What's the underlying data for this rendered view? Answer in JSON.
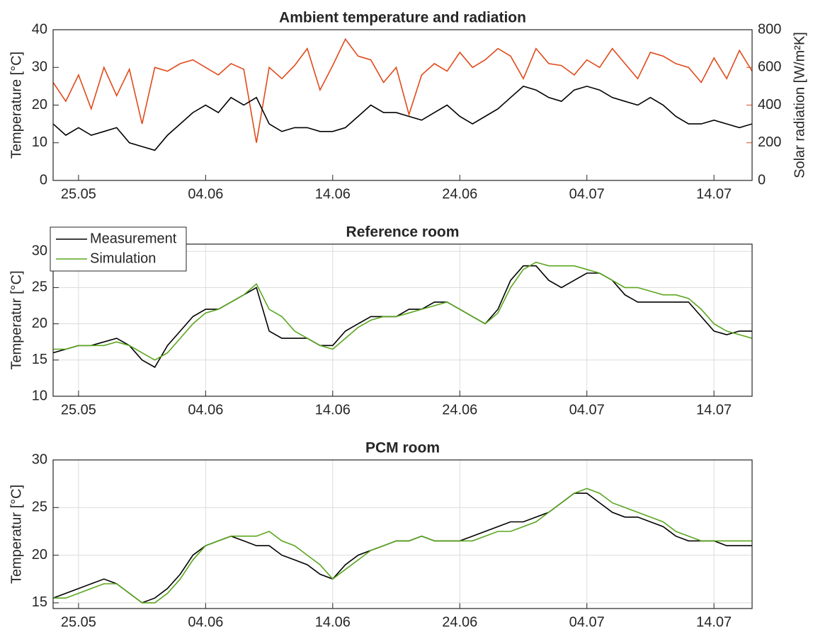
{
  "chart_data": [
    {
      "type": "line",
      "title": "Ambient temperature and radiation",
      "ylabel": "Temperature [°C]",
      "y2label": "Solar radiation [W/m²K]",
      "x": [
        "23.05",
        "24.05",
        "25.05",
        "26.05",
        "27.05",
        "28.05",
        "29.05",
        "30.05",
        "31.05",
        "01.06",
        "02.06",
        "03.06",
        "04.06",
        "05.06",
        "06.06",
        "07.06",
        "08.06",
        "09.06",
        "10.06",
        "11.06",
        "12.06",
        "13.06",
        "14.06",
        "15.06",
        "16.06",
        "17.06",
        "18.06",
        "19.06",
        "20.06",
        "21.06",
        "22.06",
        "23.06",
        "24.06",
        "25.06",
        "26.06",
        "27.06",
        "28.06",
        "29.06",
        "30.06",
        "01.07",
        "02.07",
        "03.07",
        "04.07",
        "05.07",
        "06.07",
        "07.07",
        "08.07",
        "09.07",
        "10.07",
        "11.07",
        "12.07",
        "13.07",
        "14.07",
        "15.07",
        "16.07",
        "17.07"
      ],
      "series": [
        {
          "color": "#000000",
          "values": [
            15,
            12,
            14,
            12,
            13,
            14,
            10,
            9,
            8,
            12,
            15,
            18,
            20,
            18,
            22,
            20,
            22,
            15,
            13,
            14,
            14,
            13,
            13,
            14,
            17,
            20,
            18,
            18,
            17,
            16,
            18,
            20,
            17,
            15,
            17,
            19,
            22,
            25,
            24,
            22,
            21,
            24,
            25,
            24,
            22,
            21,
            20,
            22,
            20,
            17,
            15,
            15,
            16,
            15,
            14,
            15
          ]
        },
        {
          "color": "#e04a1a",
          "axis": "y2",
          "values": [
            520,
            420,
            560,
            380,
            600,
            450,
            590,
            300,
            600,
            580,
            620,
            640,
            600,
            560,
            620,
            590,
            200,
            600,
            540,
            610,
            700,
            480,
            610,
            750,
            660,
            640,
            520,
            600,
            350,
            560,
            620,
            580,
            680,
            600,
            640,
            700,
            660,
            540,
            700,
            620,
            610,
            560,
            640,
            600,
            700,
            620,
            540,
            680,
            660,
            620,
            600,
            520,
            650,
            540,
            690,
            580
          ]
        }
      ],
      "xlim": [
        "23.05",
        "17.07"
      ],
      "xticks": [
        "25.05",
        "04.06",
        "14.06",
        "24.06",
        "04.07",
        "14.07"
      ],
      "ylim": [
        0,
        40
      ],
      "yticks": [
        0,
        10,
        20,
        30,
        40
      ],
      "y2lim": [
        0,
        800
      ],
      "y2ticks": [
        0,
        200,
        400,
        600,
        800
      ],
      "grid": false
    },
    {
      "type": "line",
      "title": "Reference room",
      "ylabel": "Temperatur [°C]",
      "legend": "upper left",
      "x": [
        "23.05",
        "24.05",
        "25.05",
        "26.05",
        "27.05",
        "28.05",
        "29.05",
        "30.05",
        "31.05",
        "01.06",
        "02.06",
        "03.06",
        "04.06",
        "05.06",
        "06.06",
        "07.06",
        "08.06",
        "09.06",
        "10.06",
        "11.06",
        "12.06",
        "13.06",
        "14.06",
        "15.06",
        "16.06",
        "17.06",
        "18.06",
        "19.06",
        "20.06",
        "21.06",
        "22.06",
        "23.06",
        "24.06",
        "25.06",
        "26.06",
        "27.06",
        "28.06",
        "29.06",
        "30.06",
        "01.07",
        "02.07",
        "03.07",
        "04.07",
        "05.07",
        "06.07",
        "07.07",
        "08.07",
        "09.07",
        "10.07",
        "11.07",
        "12.07",
        "13.07",
        "14.07",
        "15.07",
        "16.07",
        "17.07"
      ],
      "series": [
        {
          "name": "Measurement",
          "color": "#000000",
          "values": [
            16,
            16.5,
            17,
            17,
            17.5,
            18,
            17,
            15,
            14,
            17,
            19,
            21,
            22,
            22,
            23,
            24,
            25,
            19,
            18,
            18,
            18,
            17,
            17,
            19,
            20,
            21,
            21,
            21,
            22,
            22,
            23,
            23,
            22,
            21,
            20,
            22,
            26,
            28,
            28,
            26,
            25,
            26,
            27,
            27,
            26,
            24,
            23,
            23,
            23,
            23,
            23,
            21,
            19,
            18.5,
            19,
            19
          ]
        },
        {
          "name": "Simulation",
          "color": "#5aa61e",
          "values": [
            16.5,
            16.5,
            17,
            17,
            17,
            17.5,
            17,
            16,
            15,
            16,
            18,
            20,
            21.5,
            22,
            23,
            24,
            25.5,
            22,
            21,
            19,
            18,
            17,
            16.5,
            18,
            19.5,
            20.5,
            21,
            21,
            21.5,
            22,
            22.5,
            23,
            22,
            21,
            20,
            21.5,
            25,
            27.5,
            28.5,
            28,
            28,
            28,
            27.5,
            27,
            26,
            25,
            25,
            24.5,
            24,
            24,
            23.5,
            22,
            20,
            19,
            18.5,
            18
          ]
        }
      ],
      "xlim": [
        "23.05",
        "17.07"
      ],
      "xticks": [
        "25.05",
        "04.06",
        "14.06",
        "24.06",
        "04.07",
        "14.07"
      ],
      "ylim": [
        10,
        31
      ],
      "yticks": [
        10,
        15,
        20,
        25,
        30
      ],
      "grid": true
    },
    {
      "type": "line",
      "title": "PCM room",
      "ylabel": "Temperatur [°C]",
      "x": [
        "23.05",
        "24.05",
        "25.05",
        "26.05",
        "27.05",
        "28.05",
        "29.05",
        "30.05",
        "31.05",
        "01.06",
        "02.06",
        "03.06",
        "04.06",
        "05.06",
        "06.06",
        "07.06",
        "08.06",
        "09.06",
        "10.06",
        "11.06",
        "12.06",
        "13.06",
        "14.06",
        "15.06",
        "16.06",
        "17.06",
        "18.06",
        "19.06",
        "20.06",
        "21.06",
        "22.06",
        "23.06",
        "24.06",
        "25.06",
        "26.06",
        "27.06",
        "28.06",
        "29.06",
        "30.06",
        "01.07",
        "02.07",
        "03.07",
        "04.07",
        "05.07",
        "06.07",
        "07.07",
        "08.07",
        "09.07",
        "10.07",
        "11.07",
        "12.07",
        "13.07",
        "14.07",
        "15.07",
        "16.07",
        "17.07"
      ],
      "series": [
        {
          "color": "#000000",
          "values": [
            15.5,
            16,
            16.5,
            17,
            17.5,
            17,
            16,
            15,
            15.5,
            16.5,
            18,
            20,
            21,
            21.5,
            22,
            21.5,
            21,
            21,
            20,
            19.5,
            19,
            18,
            17.5,
            19,
            20,
            20.5,
            21,
            21.5,
            21.5,
            22,
            21.5,
            21.5,
            21.5,
            22,
            22.5,
            23,
            23.5,
            23.5,
            24,
            24.5,
            25.5,
            26.5,
            26.5,
            25.5,
            24.5,
            24,
            24,
            23.5,
            23,
            22,
            21.5,
            21.5,
            21.5,
            21,
            21,
            21
          ]
        },
        {
          "color": "#5aa61e",
          "values": [
            15.5,
            15.5,
            16,
            16.5,
            17,
            17,
            16,
            15,
            15,
            16,
            17.5,
            19.5,
            21,
            21.5,
            22,
            22,
            22,
            22.5,
            21.5,
            21,
            20,
            19,
            17.5,
            18.5,
            19.5,
            20.5,
            21,
            21.5,
            21.5,
            22,
            21.5,
            21.5,
            21.5,
            21.5,
            22,
            22.5,
            22.5,
            23,
            23.5,
            24.5,
            25.5,
            26.5,
            27,
            26.5,
            25.5,
            25,
            24.5,
            24,
            23.5,
            22.5,
            22,
            21.5,
            21.5,
            21.5,
            21.5,
            21.5
          ]
        }
      ],
      "xlim": [
        "23.05",
        "17.07"
      ],
      "xticks": [
        "25.05",
        "04.06",
        "14.06",
        "24.06",
        "04.07",
        "14.07"
      ],
      "ylim": [
        14.4,
        30
      ],
      "yticks": [
        15,
        20,
        25,
        30
      ],
      "grid": true
    }
  ]
}
